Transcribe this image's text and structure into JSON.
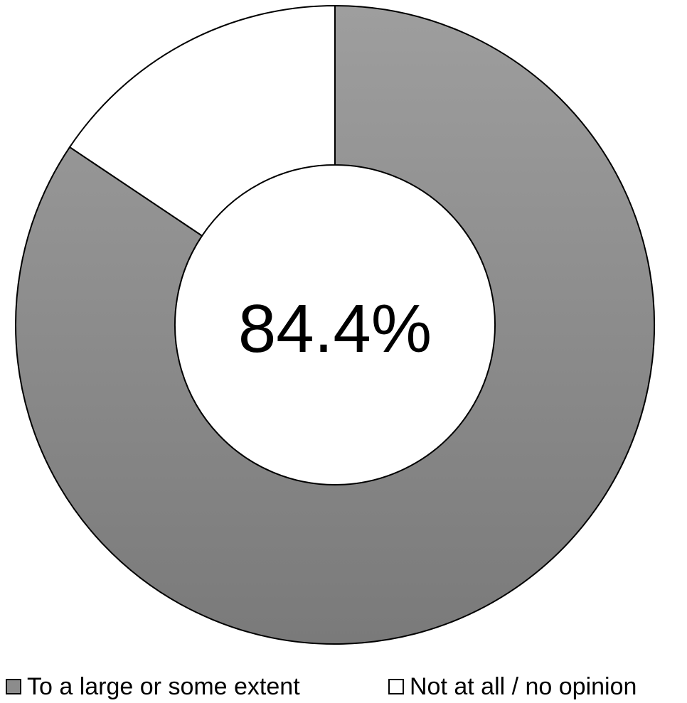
{
  "chart_data": {
    "type": "pie",
    "variant": "donut",
    "title": "",
    "center_label": "84.4%",
    "categories": [
      "To a large or some extent",
      "Not at all / no opinion"
    ],
    "values": [
      84.4,
      15.6
    ],
    "colors": [
      "#8c8c8c",
      "#ffffff"
    ],
    "legend_position": "bottom"
  }
}
